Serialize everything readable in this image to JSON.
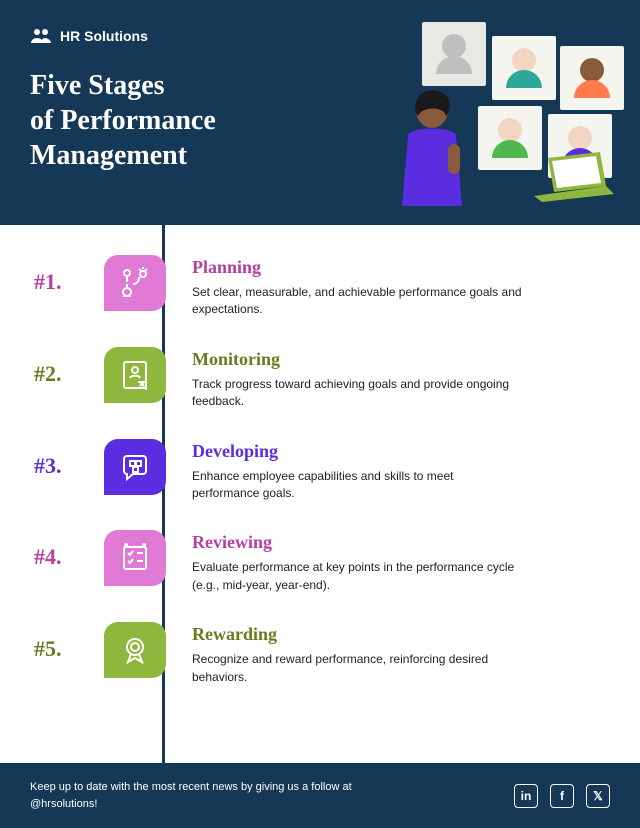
{
  "brand": {
    "name": "HR Solutions"
  },
  "title": "Five Stages\nof Performance\nManagement",
  "colors": {
    "header_bg": "#143855",
    "timeline": "#143855",
    "footer_bg": "#143855",
    "pink": "#e07ad4",
    "green": "#8fb73e",
    "violet": "#5a2ee0",
    "magenta_text": "#b63fa0",
    "olive_text": "#6b7a1f",
    "violet_text": "#5a2ee0"
  },
  "hero": {
    "person_shirt": "#5a2ee0",
    "person_skin": "#8a5a3c",
    "laptop_color": "#8fb73e",
    "tile_bg": "#f5f5f0",
    "avatars": [
      {
        "head": "#bfbfbf",
        "body": "#bfbfbf"
      },
      {
        "head": "#f2d6c2",
        "body": "#2aa89a"
      },
      {
        "head": "#8a5a3c",
        "body": "#ff7a4d"
      },
      {
        "head": "#f2d6c2",
        "body": "#4fb84f"
      },
      {
        "head": "#f2d6c2",
        "body": "#5a2ee0"
      }
    ]
  },
  "stages": [
    {
      "num": "#1.",
      "title": "Planning",
      "desc": "Set clear, measurable, and achievable performance goals and expectations.",
      "chip_color": "#e07ad4",
      "num_color": "#b63fa0",
      "title_color": "#b63fa0",
      "icon": "planning"
    },
    {
      "num": "#2.",
      "title": "Monitoring",
      "desc": "Track progress toward achieving goals and provide ongoing feedback.",
      "chip_color": "#8fb73e",
      "num_color": "#6b7a1f",
      "title_color": "#6b7a1f",
      "icon": "monitoring"
    },
    {
      "num": "#3.",
      "title": "Developing",
      "desc": "Enhance employee capabilities and skills to meet performance goals.",
      "chip_color": "#5a2ee0",
      "num_color": "#5a2ee0",
      "title_color": "#5a2ee0",
      "icon": "developing"
    },
    {
      "num": "#4.",
      "title": "Reviewing",
      "desc": "Evaluate performance at key points in the performance cycle (e.g., mid-year, year-end).",
      "chip_color": "#e07ad4",
      "num_color": "#b63fa0",
      "title_color": "#b63fa0",
      "icon": "reviewing"
    },
    {
      "num": "#5.",
      "title": "Rewarding",
      "desc": "Recognize and reward performance, reinforcing desired behaviors.",
      "chip_color": "#8fb73e",
      "num_color": "#6b7a1f",
      "title_color": "#6b7a1f",
      "icon": "rewarding"
    }
  ],
  "footer": {
    "text": "Keep up to date with the most recent news by giving us a follow at @hrsolutions!",
    "socials": [
      "linkedin",
      "facebook",
      "x"
    ]
  }
}
